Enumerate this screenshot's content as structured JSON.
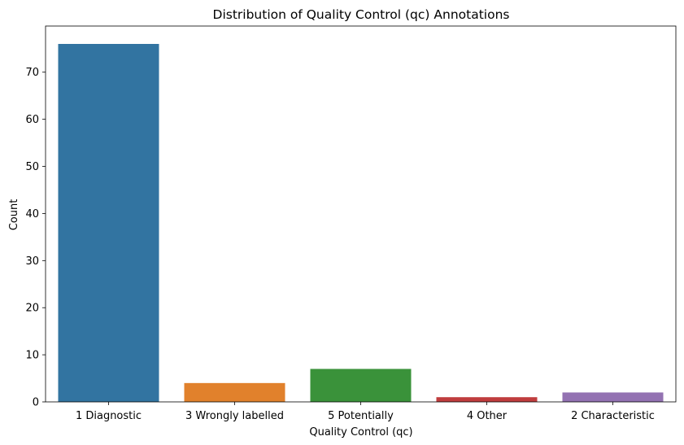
{
  "chart_data": {
    "type": "bar",
    "title": "Distribution of Quality Control (qc) Annotations",
    "xlabel": "Quality Control (qc)",
    "ylabel": "Count",
    "categories": [
      "1 Diagnostic",
      "3 Wrongly labelled",
      "5 Potentially",
      "4 Other",
      "2 Characteristic"
    ],
    "values": [
      76,
      4,
      7,
      1,
      2
    ],
    "colors": [
      "#3274a1",
      "#e1812c",
      "#3a923a",
      "#c03d3e",
      "#9372b2"
    ],
    "ylim": [
      0,
      79.8
    ],
    "yticks": [
      0,
      10,
      20,
      30,
      40,
      50,
      60,
      70
    ],
    "grid": false,
    "legend": "none"
  }
}
